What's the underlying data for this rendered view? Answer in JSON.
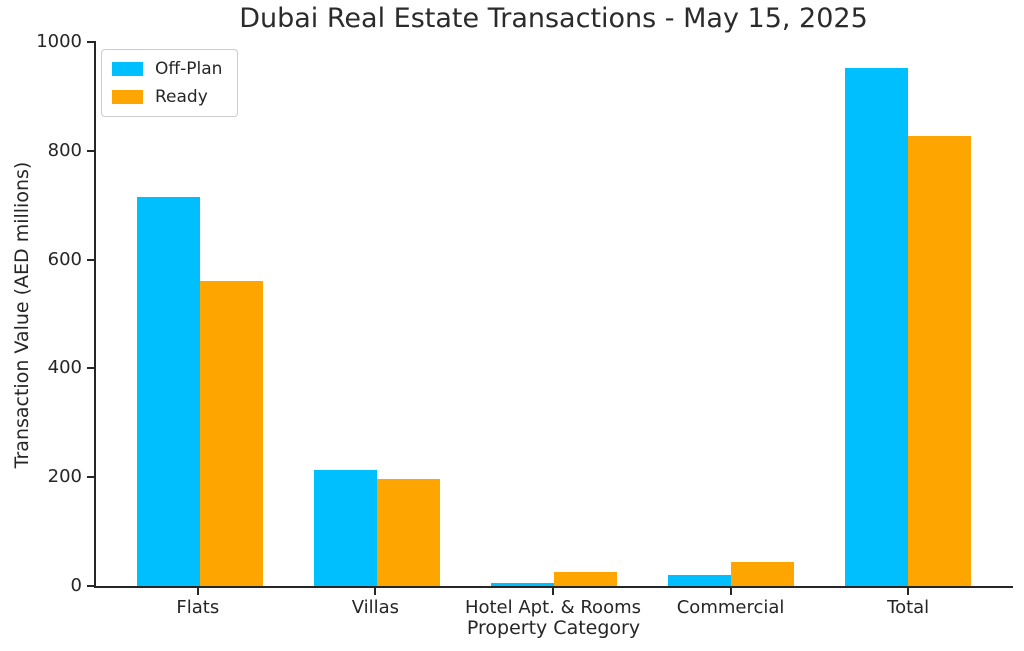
{
  "chart_data": {
    "type": "bar",
    "title": "Dubai Real Estate Transactions - May 15, 2025",
    "xlabel": "Property Category",
    "ylabel": "Transaction Value (AED millions)",
    "categories": [
      "Flats",
      "Villas",
      "Hotel Apt. & Rooms",
      "Commercial",
      "Total"
    ],
    "series": [
      {
        "name": "Off-Plan",
        "color": "#00BFFF",
        "values": [
          715,
          213,
          5,
          20,
          953
        ]
      },
      {
        "name": "Ready",
        "color": "#FFA500",
        "values": [
          560,
          196,
          26,
          45,
          827
        ]
      }
    ],
    "ylim": [
      0,
      1000
    ],
    "yticks": [
      0,
      200,
      400,
      600,
      800,
      1000
    ],
    "grid": false,
    "legend_position": "upper left",
    "colors": {
      "axis": "#262626",
      "text": "#262626",
      "background": "#ffffff"
    }
  }
}
